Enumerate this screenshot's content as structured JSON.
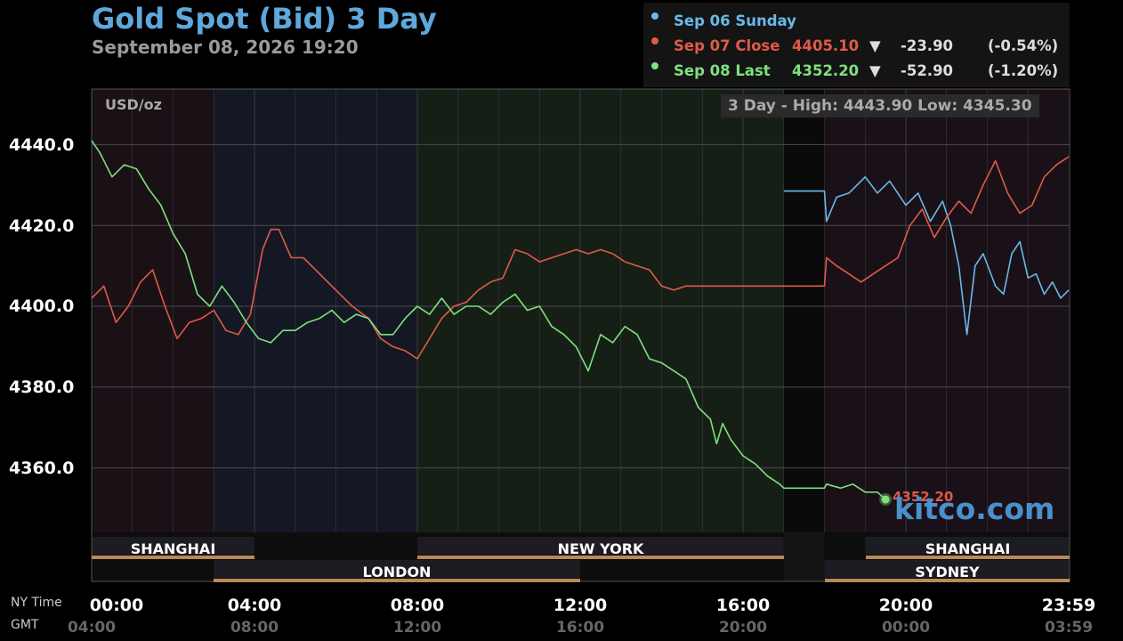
{
  "header": {
    "title": "Gold Spot (Bid) 3 Day",
    "subtitle": "September 08, 2026 19:20"
  },
  "legend": [
    {
      "label": "Sep 06 Sunday",
      "price": "",
      "arrow": "",
      "change": "",
      "pct": "",
      "color": "#6ab8e8"
    },
    {
      "label": "Sep 07 Close",
      "price": "4405.10",
      "arrow": "▼",
      "change": "-23.90",
      "pct": "(-0.54%)",
      "color": "#e05a48"
    },
    {
      "label": "Sep 08 Last",
      "price": "4352.20",
      "arrow": "▼",
      "change": "-52.90",
      "pct": "(-1.20%)",
      "color": "#7ee07e"
    }
  ],
  "chart_meta": {
    "unit": "USD/oz",
    "hilo": "3 Day - High: 4443.90  Low: 4345.30",
    "last_label": "4352.20",
    "watermark": "kitco.com",
    "axis_ny": "NY Time",
    "axis_gmt": "GMT"
  },
  "sessions": {
    "top": [
      {
        "label": "SHANGHAI",
        "start": 0,
        "end": 4
      },
      {
        "label": "NEW YORK",
        "start": 8,
        "end": 17
      },
      {
        "label": "SHANGHAI",
        "start": 19,
        "end": 24
      }
    ],
    "bottom": [
      {
        "label": "LONDON",
        "start": 3,
        "end": 12
      },
      {
        "label": "SYDNEY",
        "start": 18,
        "end": 24
      }
    ]
  },
  "chart_data": {
    "type": "line",
    "title": "Gold Spot (Bid) 3 Day",
    "ylabel": "USD/oz",
    "ylim": [
      4337,
      4453
    ],
    "xlim": [
      0,
      24
    ],
    "yticks": [
      "4440.0",
      "4420.0",
      "4400.0",
      "4380.0",
      "4360.0"
    ],
    "ytick_values": [
      4440,
      4420,
      4400,
      4380,
      4360
    ],
    "xticks_ny": [
      "00:00",
      "04:00",
      "08:00",
      "12:00",
      "16:00",
      "20:00",
      "23:59"
    ],
    "xticks_gmt": [
      "04:00",
      "08:00",
      "12:00",
      "16:00",
      "20:00",
      "00:00",
      "03:59"
    ],
    "xtick_values": [
      0,
      4,
      8,
      12,
      16,
      20,
      24
    ],
    "grid": true,
    "series": [
      {
        "name": "Sep 06 Sunday",
        "color": "#6ab8e8",
        "x": [
          17,
          18,
          18.05,
          18.3,
          18.6,
          19.0,
          19.3,
          19.6,
          20.0,
          20.3,
          20.6,
          20.9,
          21.1,
          21.3,
          21.5,
          21.7,
          21.9,
          22.2,
          22.4,
          22.6,
          22.8,
          23.0,
          23.2,
          23.4,
          23.6,
          23.8,
          24
        ],
        "values": [
          4428.5,
          4428.5,
          4421,
          4427,
          4428,
          4432,
          4428,
          4431,
          4425,
          4428,
          4421,
          4426,
          4420,
          4410,
          4393,
          4410,
          4413,
          4405,
          4403,
          4413,
          4416,
          4407,
          4408,
          4403,
          4406,
          4402,
          4404
        ]
      },
      {
        "name": "Sep 07 Close",
        "color": "#e05a48",
        "x": [
          0,
          0.3,
          0.6,
          0.9,
          1.2,
          1.5,
          1.8,
          2.1,
          2.4,
          2.7,
          3.0,
          3.3,
          3.6,
          3.9,
          4.2,
          4.4,
          4.6,
          4.9,
          5.2,
          5.5,
          5.8,
          6.1,
          6.4,
          6.8,
          7.1,
          7.4,
          7.7,
          8.0,
          8.3,
          8.6,
          8.9,
          9.2,
          9.5,
          9.8,
          10.1,
          10.4,
          10.7,
          11.0,
          11.3,
          11.6,
          11.9,
          12.2,
          12.5,
          12.8,
          13.1,
          13.4,
          13.7,
          14.0,
          14.3,
          14.6,
          14.9,
          18,
          18.05,
          18.3,
          18.6,
          18.9,
          19.2,
          19.5,
          19.8,
          20.1,
          20.4,
          20.7,
          21.0,
          21.3,
          21.6,
          21.9,
          22.2,
          22.5,
          22.8,
          23.1,
          23.4,
          23.7,
          24
        ],
        "values": [
          4402,
          4405,
          4396,
          4400,
          4406,
          4409,
          4400,
          4392,
          4396,
          4397,
          4399,
          4394,
          4393,
          4398,
          4414,
          4419,
          4419,
          4412,
          4412,
          4409,
          4406,
          4403,
          4400,
          4397,
          4392,
          4390,
          4389,
          4387,
          4392,
          4397,
          4400,
          4401,
          4404,
          4406,
          4407,
          4414,
          4413,
          4411,
          4412,
          4413,
          4414,
          4413,
          4414,
          4413,
          4411,
          4410,
          4409,
          4405,
          4404,
          4405,
          4405,
          4405,
          4412,
          4410,
          4408,
          4406,
          4408,
          4410,
          4412,
          4420,
          4424,
          4417,
          4422,
          4426,
          4423,
          4430,
          4436,
          4428,
          4423,
          4425,
          4432,
          4435,
          4437
        ]
      },
      {
        "name": "Sep 08 Last",
        "color": "#7ee07e",
        "x": [
          0,
          0.2,
          0.5,
          0.8,
          1.1,
          1.4,
          1.7,
          2.0,
          2.3,
          2.6,
          2.9,
          3.2,
          3.5,
          3.8,
          4.1,
          4.4,
          4.7,
          5.0,
          5.3,
          5.6,
          5.9,
          6.2,
          6.5,
          6.8,
          7.1,
          7.4,
          7.7,
          8.0,
          8.3,
          8.6,
          8.9,
          9.2,
          9.5,
          9.8,
          10.1,
          10.4,
          10.7,
          11.0,
          11.3,
          11.6,
          11.9,
          12.2,
          12.5,
          12.8,
          13.1,
          13.4,
          13.7,
          14.0,
          14.3,
          14.6,
          14.9,
          15.2,
          15.35,
          15.5,
          15.7,
          16.0,
          16.3,
          16.6,
          16.9,
          17,
          18,
          18.05,
          18.4,
          18.7,
          19.0,
          19.3,
          19.5
        ],
        "values": [
          4441,
          4438,
          4432,
          4435,
          4434,
          4429,
          4425,
          4418,
          4413,
          4403,
          4400,
          4405,
          4401,
          4396,
          4392,
          4391,
          4394,
          4394,
          4396,
          4397,
          4399,
          4396,
          4398,
          4397,
          4393,
          4393,
          4397,
          4400,
          4398,
          4402,
          4398,
          4400,
          4400,
          4398,
          4401,
          4403,
          4399,
          4400,
          4395,
          4393,
          4390,
          4384,
          4393,
          4391,
          4395,
          4393,
          4387,
          4386,
          4384,
          4382,
          4375,
          4372,
          4366,
          4371,
          4367,
          4363,
          4361,
          4358,
          4356,
          4355,
          4355,
          4356,
          4355,
          4356,
          4354,
          4354,
          4352.2
        ]
      }
    ]
  }
}
